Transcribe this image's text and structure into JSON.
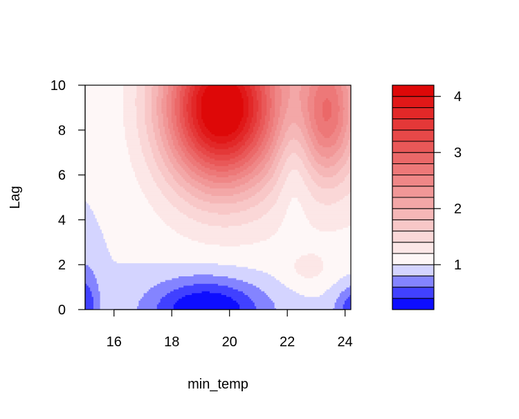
{
  "chart_data": {
    "type": "contour",
    "xlabel": "min_temp",
    "ylabel": "Lag",
    "xlim": [
      15,
      24.2
    ],
    "ylim": [
      0,
      10
    ],
    "xticks": [
      16,
      18,
      20,
      22,
      24
    ],
    "yticks": [
      0,
      2,
      4,
      6,
      8,
      10
    ],
    "grid": false,
    "legend": {
      "placement": "right",
      "type": "colorbar",
      "range": [
        0.2,
        4.2
      ],
      "ticks": [
        1,
        2,
        3,
        4
      ]
    },
    "levels": [
      0.2,
      0.4,
      0.6,
      0.8,
      1.0,
      1.2,
      1.4,
      1.6,
      1.8,
      2.0,
      2.2,
      2.4,
      2.6,
      2.8,
      3.0,
      3.2,
      3.4,
      3.6,
      3.8,
      4.0,
      4.2
    ],
    "features": [
      {
        "kind": "max",
        "x": 19.7,
        "lag": 8.9,
        "value": 4.2
      },
      {
        "kind": "max",
        "x": 23.4,
        "lag": 9.0,
        "value": 3.1
      },
      {
        "kind": "min",
        "x": 19.2,
        "lag": 0.0,
        "value": 0.2
      },
      {
        "kind": "min",
        "x": 24.2,
        "lag": 0.0,
        "value": 0.5
      },
      {
        "kind": "trough",
        "x": 22.7,
        "lag": 2.0,
        "value": 1.1
      }
    ],
    "colors": {
      "low": "#0000ff",
      "mid": "#ffffff",
      "high": "#dd0000"
    }
  }
}
